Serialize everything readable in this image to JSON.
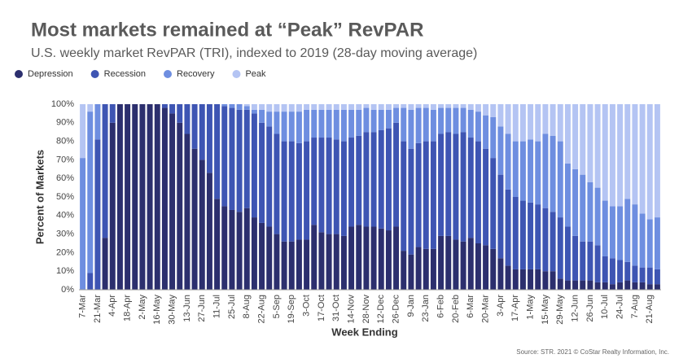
{
  "chart_data": {
    "type": "stacked_bar",
    "title": "Most markets remained at “Peak” RevPAR",
    "subtitle": "U.S. weekly market RevPAR (TRI), indexed to 2019 (28-day moving average)",
    "x_label": "Week Ending",
    "y_label": "Percent of Markets",
    "source": "Source: STR. 2021 © CoStar Realty Information, Inc.",
    "legend_position": "top-left",
    "grid": false,
    "ylim": [
      0,
      100
    ],
    "yticks": [
      {
        "value": 0,
        "label": "0%"
      },
      {
        "value": 10,
        "label": "10%"
      },
      {
        "value": 20,
        "label": "20%"
      },
      {
        "value": 30,
        "label": "30%"
      },
      {
        "value": 40,
        "label": "40%"
      },
      {
        "value": 50,
        "label": "50%"
      },
      {
        "value": 60,
        "label": "60%"
      },
      {
        "value": 70,
        "label": "70%"
      },
      {
        "value": 80,
        "label": "80%"
      },
      {
        "value": 90,
        "label": "90%"
      },
      {
        "value": 100,
        "label": "100%"
      }
    ],
    "categories": [
      "7-Mar",
      null,
      "21-Mar",
      null,
      "4-Apr",
      null,
      "18-Apr",
      null,
      "2-May",
      null,
      "16-May",
      null,
      "30-May",
      null,
      "13-Jun",
      null,
      "27-Jun",
      null,
      "11-Jul",
      null,
      "25-Jul",
      null,
      "8-Aug",
      null,
      "22-Aug",
      null,
      "5-Sep",
      null,
      "19-Sep",
      null,
      "3-Oct",
      null,
      "17-Oct",
      null,
      "31-Oct",
      null,
      "14-Nov",
      null,
      "28-Nov",
      null,
      "12-Dec",
      null,
      "26-Dec",
      null,
      "9-Jan",
      null,
      "23-Jan",
      null,
      "6-Feb",
      null,
      "20-Feb",
      null,
      "6-Mar",
      null,
      "20-Mar",
      null,
      "3-Apr",
      null,
      "17-Apr",
      null,
      "1-May",
      null,
      "15-May",
      null,
      "29-May",
      null,
      "12-Jun",
      null,
      "26-Jun",
      null,
      "10-Jul",
      null,
      "24-Jul",
      null,
      "7-Aug",
      null,
      "21-Aug",
      null
    ],
    "series": [
      {
        "name": "Depression",
        "color": "#2c2f6e",
        "values": [
          0,
          0,
          0,
          28,
          90,
          100,
          100,
          100,
          100,
          100,
          100,
          98,
          95,
          90,
          84,
          76,
          70,
          63,
          49,
          45,
          43,
          42,
          44,
          39,
          36,
          34,
          30,
          26,
          26,
          27,
          27,
          35,
          31,
          30,
          30,
          29,
          34,
          35,
          34,
          34,
          33,
          32,
          34,
          21,
          19,
          23,
          22,
          22,
          29,
          29,
          27,
          26,
          28,
          25,
          24,
          22,
          17,
          13,
          11,
          11,
          11,
          11,
          10,
          10,
          6,
          5,
          5,
          5,
          5,
          4,
          4,
          3,
          4,
          5,
          4,
          4,
          3,
          3
        ]
      },
      {
        "name": "Recession",
        "color": "#3e55b3",
        "values": [
          0,
          9,
          81,
          72,
          10,
          0,
          0,
          0,
          0,
          0,
          0,
          2,
          5,
          10,
          16,
          24,
          30,
          37,
          51,
          54,
          55,
          55,
          53,
          56,
          54,
          54,
          54,
          54,
          54,
          52,
          53,
          47,
          51,
          52,
          51,
          51,
          48,
          48,
          51,
          51,
          53,
          55,
          56,
          59,
          57,
          56,
          58,
          58,
          55,
          56,
          57,
          59,
          54,
          55,
          52,
          49,
          45,
          41,
          39,
          37,
          36,
          35,
          34,
          32,
          33,
          29,
          24,
          21,
          21,
          20,
          14,
          14,
          12,
          10,
          9,
          8,
          9,
          8
        ]
      },
      {
        "name": "Recovery",
        "color": "#6e8ee0",
        "values": [
          71,
          87,
          19,
          0,
          0,
          0,
          0,
          0,
          0,
          0,
          0,
          0,
          0,
          0,
          0,
          0,
          0,
          0,
          0,
          1,
          2,
          3,
          2,
          2,
          7,
          8,
          12,
          16,
          16,
          17,
          17,
          15,
          15,
          15,
          16,
          17,
          15,
          14,
          13,
          12,
          11,
          10,
          8,
          18,
          21,
          19,
          18,
          17,
          14,
          13,
          14,
          13,
          15,
          16,
          18,
          22,
          26,
          30,
          30,
          32,
          34,
          34,
          40,
          41,
          41,
          34,
          36,
          36,
          32,
          31,
          30,
          28,
          29,
          34,
          33,
          29,
          26,
          28
        ]
      },
      {
        "name": "Peak",
        "color": "#b4c4f3",
        "values": [
          29,
          4,
          0,
          0,
          0,
          0,
          0,
          0,
          0,
          0,
          0,
          0,
          0,
          0,
          0,
          0,
          0,
          0,
          0,
          0,
          0,
          0,
          1,
          3,
          3,
          4,
          4,
          4,
          4,
          4,
          3,
          3,
          3,
          3,
          3,
          3,
          3,
          3,
          2,
          3,
          3,
          3,
          2,
          2,
          3,
          2,
          2,
          3,
          2,
          2,
          2,
          2,
          3,
          4,
          6,
          7,
          12,
          16,
          20,
          20,
          19,
          20,
          16,
          17,
          20,
          32,
          35,
          38,
          42,
          45,
          52,
          55,
          55,
          51,
          54,
          59,
          62,
          61
        ]
      }
    ]
  }
}
